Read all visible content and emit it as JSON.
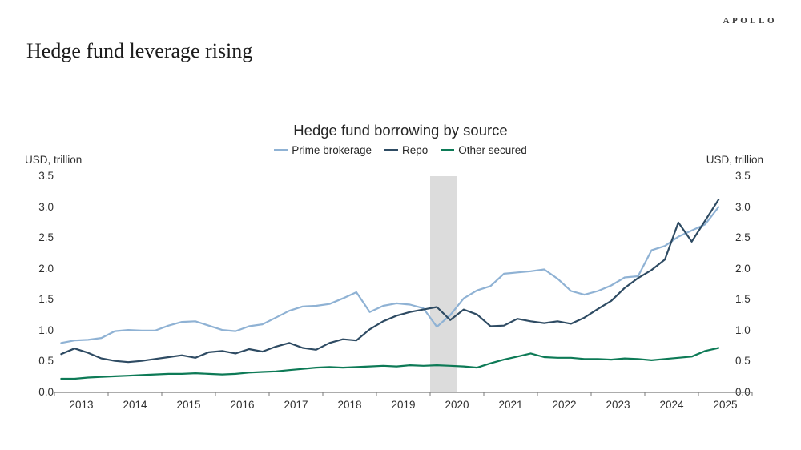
{
  "header": {
    "title": "Hedge fund leverage rising",
    "brand": "APOLLO"
  },
  "chart": {
    "title": "Hedge fund borrowing by source",
    "left_axis_header": "USD, trillion",
    "right_axis_header": "USD, trillion"
  },
  "chart_data": {
    "type": "line",
    "title": "Hedge fund borrowing by source",
    "ylabel": "USD, trillion",
    "ylabel_right": "USD, trillion",
    "ylim": [
      0,
      3.5
    ],
    "y_tick_labels": [
      "3.5",
      "3.0",
      "2.5",
      "2.0",
      "1.5",
      "1.0",
      "0.5",
      "0.0"
    ],
    "x_labels": [
      "2013",
      "2014",
      "2015",
      "2016",
      "2017",
      "2018",
      "2019",
      "2020",
      "2021",
      "2022",
      "2023",
      "2024",
      "2025"
    ],
    "x_frequency": "quarterly",
    "x_first_point": "2013Q1",
    "x_last_point": "2025Q2",
    "grid": false,
    "legend_position": "top-center",
    "dual_axis_labels": true,
    "recession_band": {
      "start_year": 2020.0,
      "end_year": 2020.5,
      "color": "#dcdcdc"
    },
    "axis_color": "#7a7a7a",
    "series": [
      {
        "name": "Prime brokerage",
        "color": "#8fb2d4",
        "values": [
          0.8,
          0.84,
          0.85,
          0.88,
          0.99,
          1.01,
          1.0,
          1.0,
          1.08,
          1.14,
          1.15,
          1.08,
          1.01,
          0.99,
          1.07,
          1.1,
          1.21,
          1.32,
          1.39,
          1.4,
          1.43,
          1.52,
          1.62,
          1.3,
          1.4,
          1.44,
          1.42,
          1.36,
          1.06,
          1.25,
          1.52,
          1.65,
          1.72,
          1.92,
          1.94,
          1.96,
          1.99,
          1.84,
          1.64,
          1.58,
          1.64,
          1.73,
          1.86,
          1.88,
          2.3,
          2.37,
          2.52,
          2.62,
          2.72,
          3.0
        ]
      },
      {
        "name": "Repo",
        "color": "#2e4b63",
        "values": [
          0.62,
          0.71,
          0.64,
          0.55,
          0.51,
          0.49,
          0.51,
          0.54,
          0.57,
          0.6,
          0.56,
          0.65,
          0.67,
          0.63,
          0.7,
          0.66,
          0.74,
          0.8,
          0.72,
          0.69,
          0.8,
          0.86,
          0.84,
          1.02,
          1.15,
          1.24,
          1.3,
          1.34,
          1.38,
          1.17,
          1.34,
          1.26,
          1.07,
          1.08,
          1.19,
          1.15,
          1.12,
          1.15,
          1.11,
          1.21,
          1.35,
          1.48,
          1.69,
          1.85,
          1.98,
          2.15,
          2.75,
          2.44,
          2.78,
          3.12
        ]
      },
      {
        "name": "Other secured",
        "color": "#0d7a56",
        "values": [
          0.22,
          0.22,
          0.24,
          0.25,
          0.26,
          0.27,
          0.28,
          0.29,
          0.3,
          0.3,
          0.31,
          0.3,
          0.29,
          0.3,
          0.32,
          0.33,
          0.34,
          0.36,
          0.38,
          0.4,
          0.41,
          0.4,
          0.41,
          0.42,
          0.43,
          0.42,
          0.44,
          0.43,
          0.44,
          0.43,
          0.42,
          0.4,
          0.47,
          0.53,
          0.58,
          0.63,
          0.57,
          0.56,
          0.56,
          0.54,
          0.54,
          0.53,
          0.55,
          0.54,
          0.52,
          0.54,
          0.56,
          0.58,
          0.67,
          0.72
        ]
      }
    ]
  }
}
